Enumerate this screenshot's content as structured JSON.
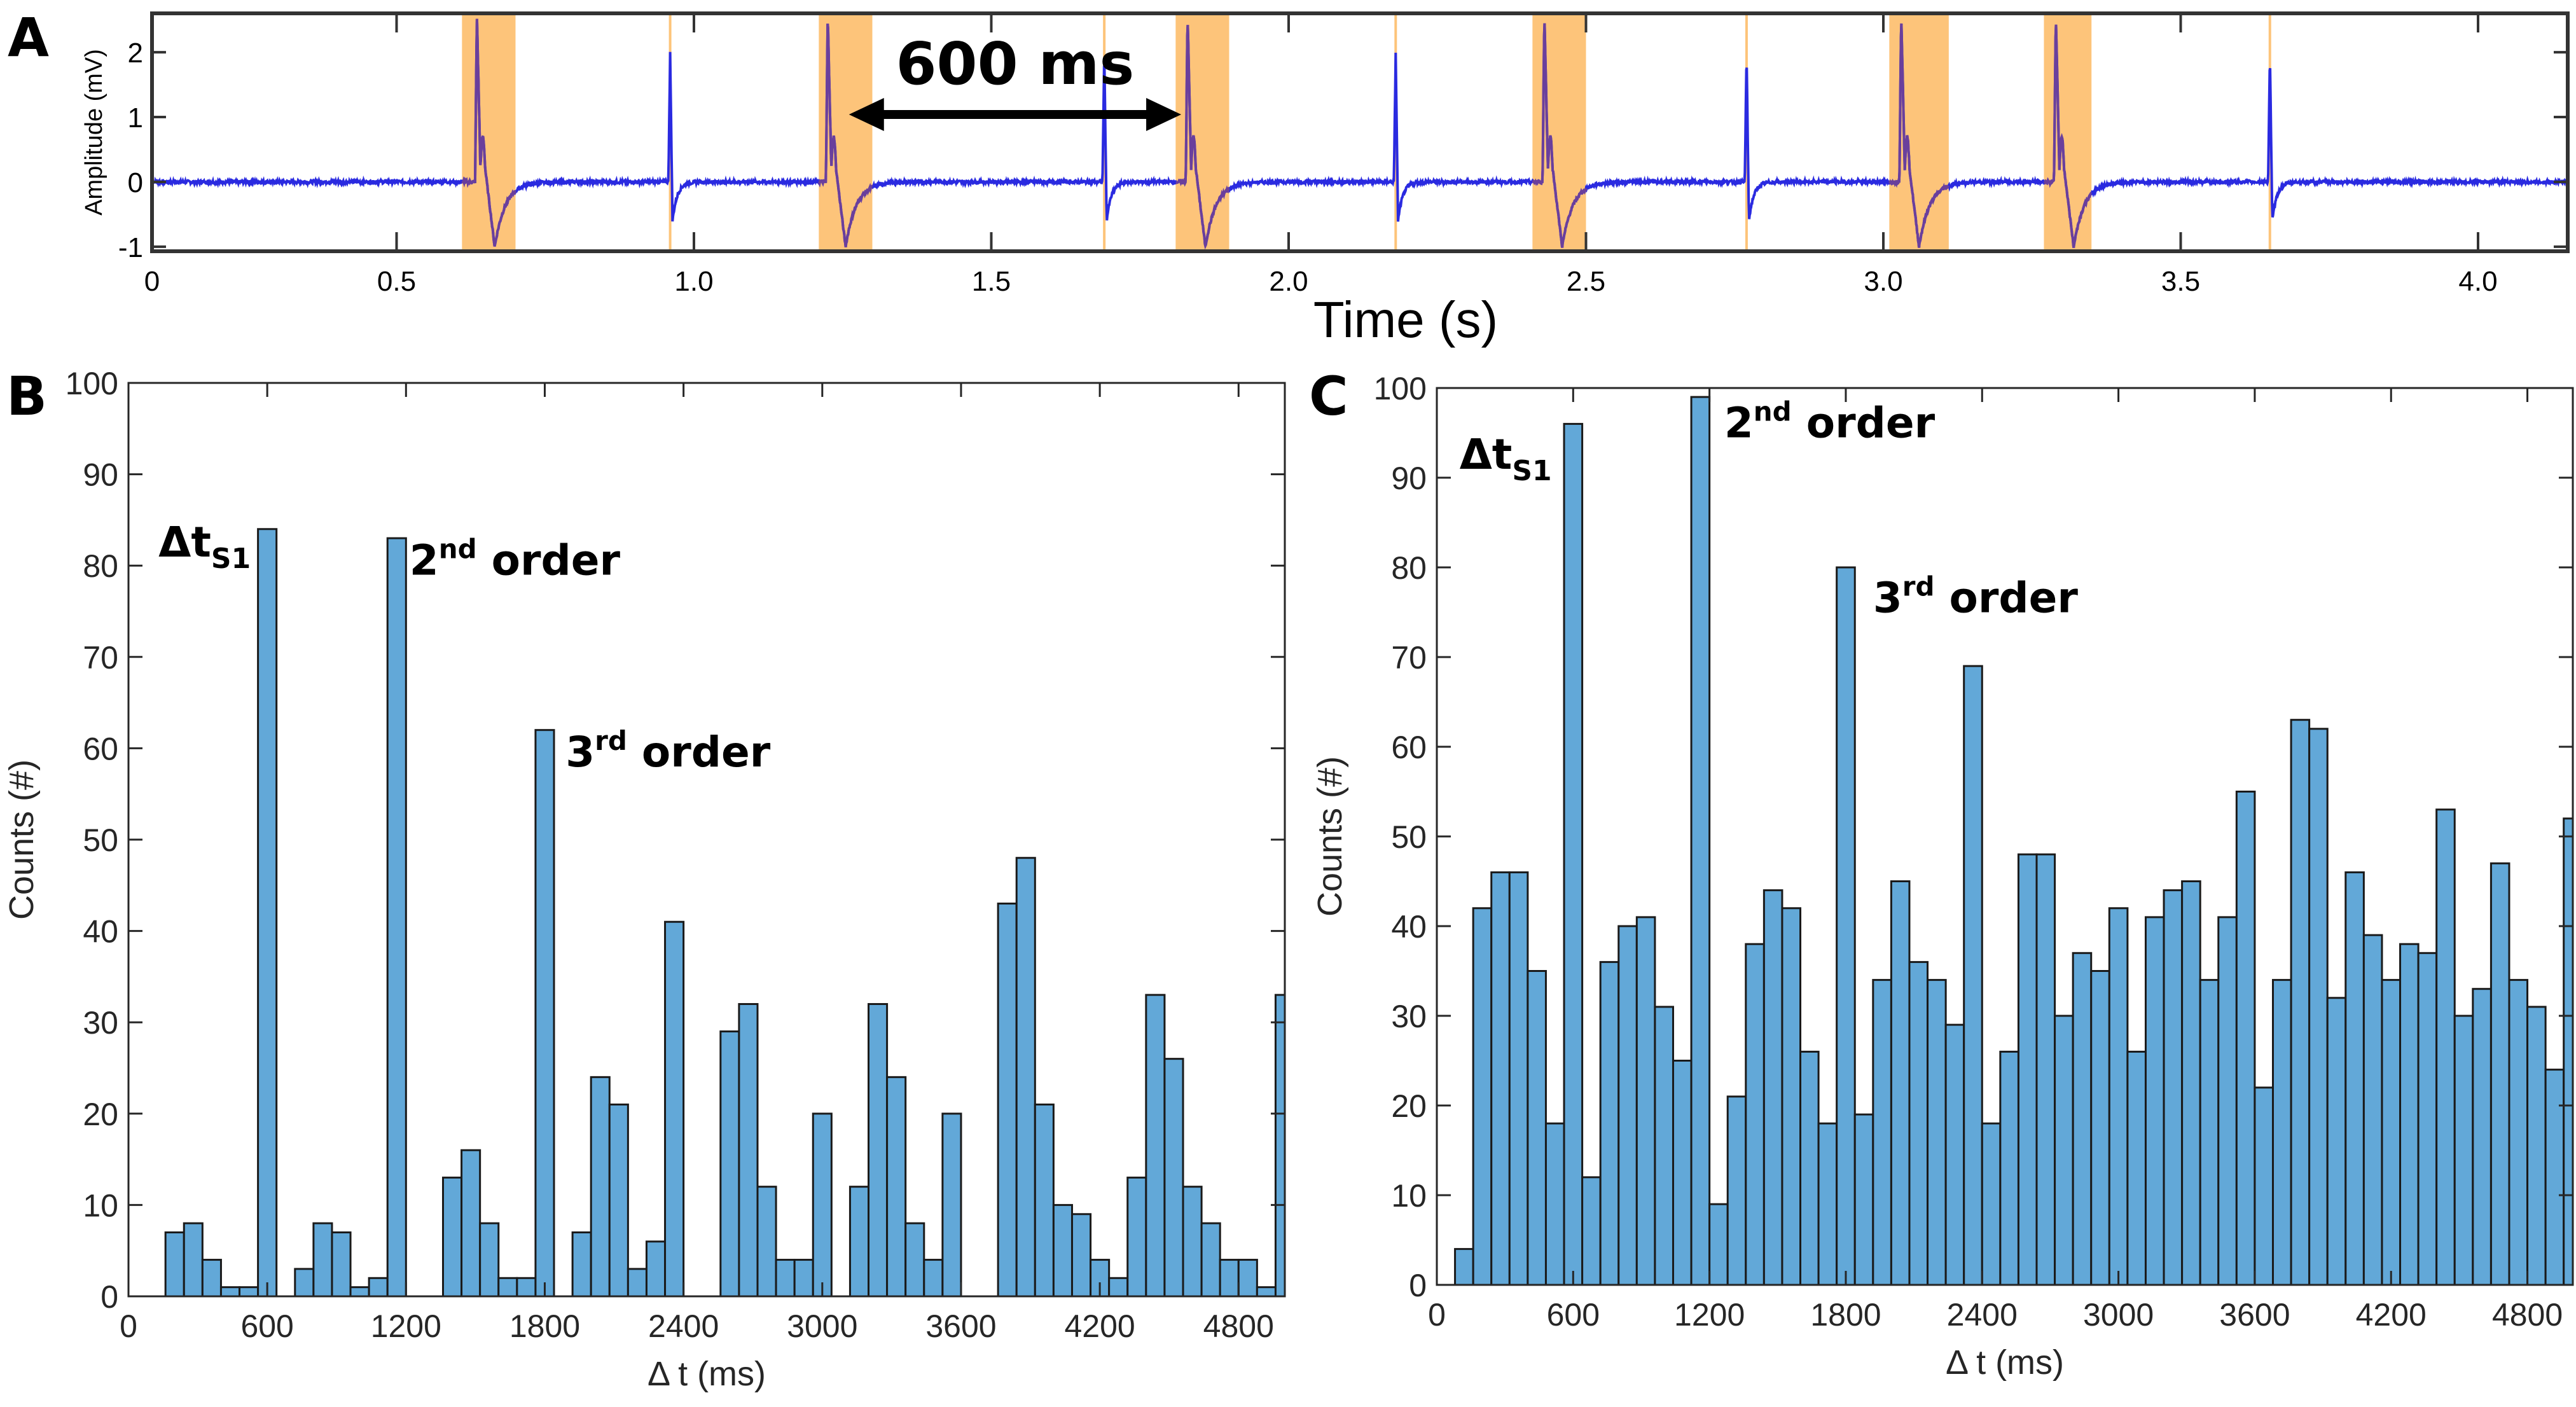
{
  "colors": {
    "bar_fill": "#62a8d8",
    "bar_stroke": "#1a1a1a",
    "trace": "#2a2ae0",
    "trace_in_band": "#6a3f9c",
    "band": "#fdc47a",
    "axis": "#333333"
  },
  "chart_data": [
    {
      "panel": "A",
      "type": "line",
      "title": "",
      "xlabel": "Time (s)",
      "ylabel": "Amplitude (mV)",
      "xlim": [
        0,
        4.16
      ],
      "ylim": [
        -1.07,
        2.6
      ],
      "xticks": [
        0,
        0.5,
        1.0,
        1.5,
        2.0,
        2.5,
        3.0,
        3.5,
        4.0
      ],
      "xtick_labels": [
        "0",
        "0.5",
        "1.0",
        "1.5",
        "2.0",
        "2.5",
        "3.0",
        "3.5",
        "4.0"
      ],
      "yticks": [
        -1,
        0,
        1,
        2
      ],
      "ytick_labels": [
        "-1",
        "0",
        "1",
        "2"
      ],
      "narrow_spike_times_s": [
        0.96,
        1.69,
        2.18,
        2.77,
        3.65
      ],
      "highlighted_events": [
        {
          "start_s": 0.61,
          "end_s": 0.7,
          "spike_s": 0.635
        },
        {
          "start_s": 1.21,
          "end_s": 1.3,
          "spike_s": 1.225
        },
        {
          "start_s": 1.81,
          "end_s": 1.9,
          "spike_s": 1.83
        },
        {
          "start_s": 2.41,
          "end_s": 2.5,
          "spike_s": 2.43
        },
        {
          "start_s": 3.01,
          "end_s": 3.11,
          "spike_s": 3.03
        },
        {
          "start_s": 3.27,
          "end_s": 3.35,
          "spike_s": 3.29
        }
      ],
      "annotation": {
        "label": "600 ms",
        "from_s": 1.25,
        "to_s": 1.83
      }
    },
    {
      "panel": "B",
      "type": "bar",
      "xlabel": "Δ t (ms)",
      "ylabel": "Counts (#)",
      "xlim": [
        0,
        5000
      ],
      "ylim": [
        0,
        100
      ],
      "xticks": [
        0,
        600,
        1200,
        1800,
        2400,
        3000,
        3600,
        4200,
        4800
      ],
      "yticks": [
        0,
        10,
        20,
        30,
        40,
        50,
        60,
        70,
        80,
        90,
        100
      ],
      "bin_start_ms": 160,
      "bin_width_ms": 80,
      "values": [
        7,
        8,
        4,
        1,
        1,
        84,
        0,
        3,
        8,
        7,
        1,
        2,
        83,
        0,
        0,
        13,
        16,
        8,
        2,
        2,
        62,
        0,
        7,
        24,
        21,
        3,
        6,
        41,
        0,
        0,
        29,
        32,
        12,
        4,
        4,
        20,
        0,
        12,
        32,
        24,
        8,
        4,
        20,
        0,
        0,
        43,
        48,
        21,
        10,
        9,
        4,
        2,
        13,
        33,
        26,
        12,
        8,
        4,
        4,
        1,
        33
      ],
      "annotations": [
        {
          "main": "Δt",
          "sub": "S1",
          "sup": ""
        },
        {
          "main": "2",
          "sup": "nd",
          "tail": " order"
        },
        {
          "main": "3",
          "sup": "rd",
          "tail": " order"
        }
      ]
    },
    {
      "panel": "C",
      "type": "bar",
      "xlabel": "Δ t (ms)",
      "ylabel": "Counts (#)",
      "xlim": [
        0,
        5000
      ],
      "ylim": [
        0,
        100
      ],
      "xticks": [
        0,
        600,
        1200,
        1800,
        2400,
        3000,
        3600,
        4200,
        4800
      ],
      "yticks": [
        0,
        10,
        20,
        30,
        40,
        50,
        60,
        70,
        80,
        90,
        100
      ],
      "bin_start_ms": 80,
      "bin_width_ms": 80,
      "values": [
        4,
        42,
        46,
        46,
        35,
        18,
        96,
        12,
        36,
        40,
        41,
        31,
        25,
        99,
        9,
        21,
        38,
        44,
        42,
        26,
        18,
        80,
        19,
        34,
        45,
        36,
        34,
        29,
        69,
        18,
        26,
        48,
        48,
        30,
        37,
        35,
        42,
        26,
        41,
        44,
        45,
        34,
        41,
        55,
        22,
        34,
        63,
        62,
        32,
        46,
        39,
        34,
        38,
        37,
        53,
        30,
        33,
        47,
        34,
        31,
        24,
        52
      ],
      "annotations": [
        {
          "main": "Δt",
          "sub": "S1",
          "sup": ""
        },
        {
          "main": "2",
          "sup": "nd",
          "tail": " order"
        },
        {
          "main": "3",
          "sup": "rd",
          "tail": " order"
        }
      ]
    }
  ]
}
